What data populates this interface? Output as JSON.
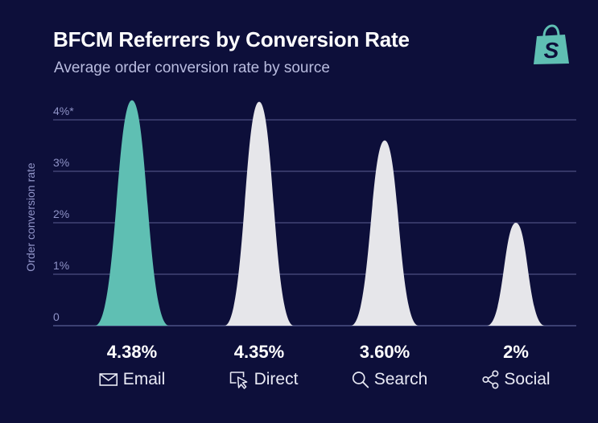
{
  "header": {
    "title": "BFCM Referrers by Conversion Rate",
    "subtitle": "Average order conversion rate by source"
  },
  "logo": {
    "icon": "shopify-bag-icon",
    "color": "#5fbfb3"
  },
  "colors": {
    "background": "#0d0f3a",
    "highlight": "#5fbfb3",
    "peak": "#e6e6ea",
    "grid": "#5a5e93",
    "tick_text": "#8f93c7",
    "value_text": "#ffffff"
  },
  "chart_data": {
    "type": "area",
    "title": "BFCM Referrers by Conversion Rate",
    "subtitle": "Average order conversion rate by source",
    "ylabel": "Order conversion rate",
    "xlabel": "",
    "ylim": [
      0,
      4
    ],
    "yticks": [
      0,
      1,
      2,
      3,
      4
    ],
    "ytick_labels": [
      "0",
      "1%",
      "2%",
      "3%",
      "4%*"
    ],
    "grid": true,
    "categories": [
      "Email",
      "Direct",
      "Search",
      "Social"
    ],
    "values": [
      4.38,
      4.35,
      3.6,
      2.0
    ],
    "value_labels": [
      "4.38%",
      "4.35%",
      "3.60%",
      "2%"
    ],
    "category_icons": [
      "envelope-icon",
      "cursor-click-icon",
      "magnifier-icon",
      "share-icon"
    ],
    "highlighted_category": "Email"
  }
}
